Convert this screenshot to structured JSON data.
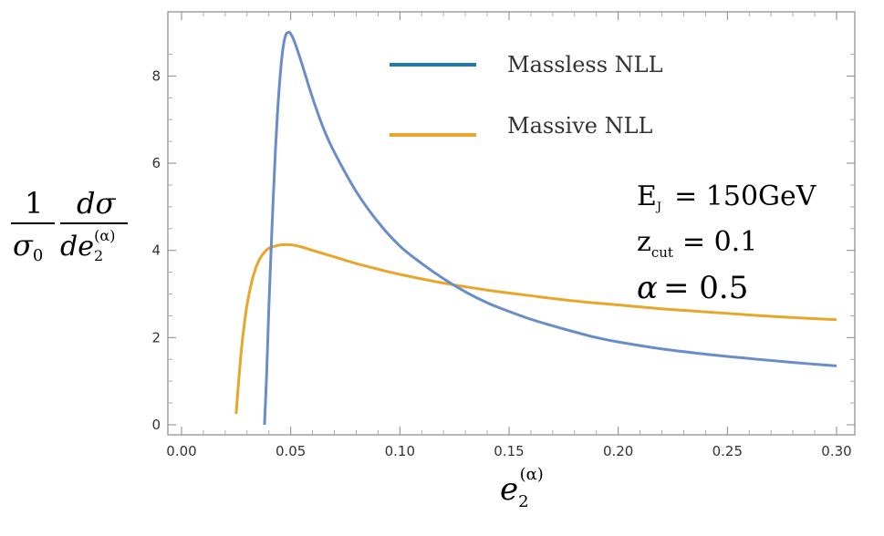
{
  "chart_data": {
    "type": "line",
    "xlim": [
      0.0,
      0.3
    ],
    "ylim": [
      0,
      9.2
    ],
    "x_ticks": [
      "0.00",
      "0.05",
      "0.10",
      "0.15",
      "0.20",
      "0.25",
      "0.30"
    ],
    "y_ticks": [
      "0",
      "2",
      "4",
      "6",
      "8"
    ],
    "series": [
      {
        "name": "Massless NLL",
        "color": "#6A8DC9",
        "legend_color": "#1F77B4",
        "x": [
          0.038,
          0.039,
          0.04,
          0.041,
          0.042,
          0.043,
          0.044,
          0.045,
          0.046,
          0.047,
          0.048,
          0.049,
          0.05,
          0.052,
          0.055,
          0.06,
          0.065,
          0.07,
          0.08,
          0.09,
          0.1,
          0.11,
          0.12,
          0.13,
          0.14,
          0.15,
          0.16,
          0.17,
          0.18,
          0.19,
          0.2,
          0.22,
          0.24,
          0.26,
          0.28,
          0.3
        ],
        "y": [
          0.0,
          1.2,
          2.7,
          4.0,
          5.2,
          6.3,
          7.2,
          7.9,
          8.45,
          8.8,
          8.97,
          9.0,
          8.97,
          8.75,
          8.3,
          7.5,
          6.8,
          6.25,
          5.35,
          4.65,
          4.1,
          3.7,
          3.35,
          3.05,
          2.8,
          2.6,
          2.42,
          2.27,
          2.13,
          2.0,
          1.9,
          1.74,
          1.62,
          1.52,
          1.43,
          1.35
        ]
      },
      {
        "name": "Massive NLL",
        "color": "#E8A62A",
        "legend_color": "#E8A62A",
        "x": [
          0.025,
          0.026,
          0.027,
          0.028,
          0.029,
          0.03,
          0.032,
          0.034,
          0.036,
          0.038,
          0.04,
          0.043,
          0.046,
          0.05,
          0.055,
          0.06,
          0.07,
          0.08,
          0.09,
          0.1,
          0.12,
          0.14,
          0.16,
          0.18,
          0.2,
          0.22,
          0.24,
          0.26,
          0.28,
          0.3
        ],
        "y": [
          0.25,
          0.9,
          1.5,
          2.0,
          2.4,
          2.75,
          3.25,
          3.6,
          3.82,
          3.96,
          4.05,
          4.1,
          4.13,
          4.13,
          4.08,
          4.0,
          3.85,
          3.7,
          3.57,
          3.45,
          3.25,
          3.09,
          2.96,
          2.84,
          2.75,
          2.66,
          2.59,
          2.52,
          2.46,
          2.41
        ]
      }
    ],
    "legend": [
      "Massless NLL",
      "Massive NLL"
    ],
    "annotations": [
      {
        "main": "E",
        "sub": "J",
        "rest": "= 150GeV"
      },
      {
        "main": "z",
        "sub": "cut",
        "rest": "= 0.1"
      },
      {
        "main": "α",
        "sub": "",
        "rest": "= 0.5"
      }
    ],
    "ylabel": {
      "one": "1",
      "sigma0": "σ",
      "sigma0_sub": "0",
      "dsigma": "dσ",
      "de": "de",
      "de_sub": "2",
      "de_sup": "(α)"
    },
    "xlabel": {
      "e": "e",
      "sub": "2",
      "sup": "(α)"
    }
  }
}
